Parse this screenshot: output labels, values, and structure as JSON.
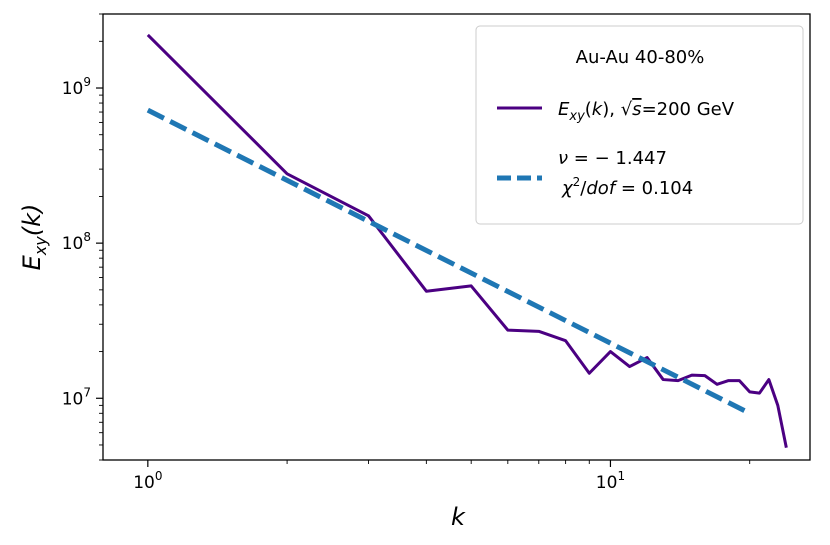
{
  "chart_data": {
    "type": "line",
    "xscale": "log",
    "yscale": "log",
    "xlabel": "k",
    "ylabel": "E_xy(k)",
    "xlim": [
      0.8,
      27
    ],
    "ylim": [
      4000000,
      3000000000
    ],
    "x_ticks": [
      {
        "value": 1,
        "base": "10",
        "exp": "0"
      },
      {
        "value": 10,
        "base": "10",
        "exp": "1"
      }
    ],
    "y_ticks": [
      {
        "value": 10000000,
        "base": "10",
        "exp": "7"
      },
      {
        "value": 100000000,
        "base": "10",
        "exp": "8"
      },
      {
        "value": 1000000000,
        "base": "10",
        "exp": "9"
      }
    ],
    "series": [
      {
        "name": "E_xy(k), √s=200 GeV",
        "style": "solid",
        "color": "#4b0082",
        "x": [
          1,
          2,
          3,
          4,
          5,
          6,
          7,
          8,
          9,
          10,
          11,
          12,
          13,
          14,
          15,
          16,
          17,
          18,
          19,
          20,
          21,
          22,
          23,
          24
        ],
        "y": [
          2200000000,
          280000000,
          150000000,
          49000000,
          53000000,
          27500000,
          27000000,
          23500000,
          14500000,
          20000000,
          16000000,
          18300000,
          13200000,
          13000000,
          14100000,
          14000000,
          12300000,
          13000000,
          13000000,
          11000000,
          10800000,
          13200000,
          9000000,
          4800000
        ]
      },
      {
        "name": "fit",
        "style": "dashed",
        "color": "#1f77b4",
        "x": [
          1,
          20
        ],
        "y": [
          720000000,
          8000000
        ]
      }
    ],
    "legend": {
      "position": "top-right",
      "title": "Au-Au  40-80%",
      "entries": [
        {
          "label": "E_xy(k),  √s=200 GeV"
        },
        {
          "label_line1": "ν = − 1.447",
          "label_line2": "χ²/dof = 0.104"
        }
      ]
    }
  }
}
